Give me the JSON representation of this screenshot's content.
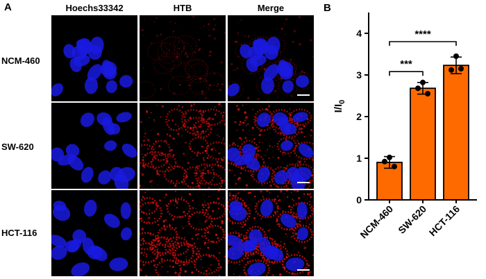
{
  "panels": {
    "a": "A",
    "b": "B"
  },
  "columns": [
    "Hoechs33342",
    "HTB",
    "Merge"
  ],
  "rows": [
    "NCM-460",
    "SW-620",
    "HCT-116"
  ],
  "chart_data": {
    "type": "bar",
    "categories": [
      "NCM-460",
      "SW-620",
      "HCT-116"
    ],
    "values": [
      0.9,
      2.68,
      3.23
    ],
    "errors": [
      0.14,
      0.14,
      0.2
    ],
    "points": [
      [
        1.02,
        0.92,
        0.8
      ],
      [
        2.82,
        2.68,
        2.55
      ],
      [
        3.45,
        3.12,
        3.15
      ]
    ],
    "ylabel": "I/I",
    "ylabel_sub": "0",
    "ylim": [
      0,
      4.5
    ],
    "yticks": [
      "0",
      "1",
      "2",
      "3",
      "4"
    ],
    "bar_color": "#ff6a00",
    "significance": [
      {
        "from": 0,
        "to": 1,
        "label": "***"
      },
      {
        "from": 0,
        "to": 2,
        "label": "****"
      }
    ]
  },
  "cell_intensity": [
    [
      0,
      0.15,
      0.15
    ],
    [
      0,
      0.7,
      0.7
    ],
    [
      0,
      0.8,
      0.8
    ]
  ]
}
